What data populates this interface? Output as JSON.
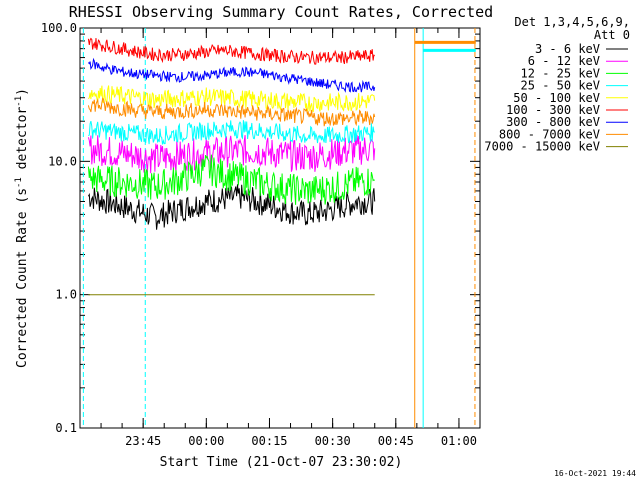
{
  "chart_data": {
    "type": "line",
    "title": "RHESSI Observing Summary Count Rates, Corrected",
    "xlabel": "Start Time (21-Oct-07 23:30:02)",
    "ylabel_main": "Corrected Count Rate (s",
    "ylabel_sup": "-1",
    "ylabel_tail": " detector",
    "ylabel_end": ")",
    "y_scale": "log",
    "ylim": [
      0.1,
      100
    ],
    "xlim_minutes": [
      0,
      95
    ],
    "x_ticks": [
      {
        "label": "23:45",
        "minutes": 15
      },
      {
        "label": "00:00",
        "minutes": 30
      },
      {
        "label": "00:15",
        "minutes": 45
      },
      {
        "label": "00:30",
        "minutes": 60
      },
      {
        "label": "00:45",
        "minutes": 75
      },
      {
        "label": "01:00",
        "minutes": 90
      }
    ],
    "y_ticks": [
      {
        "label": "100.0",
        "value": 100
      },
      {
        "label": "10.0",
        "value": 10
      },
      {
        "label": "1.0",
        "value": 1
      },
      {
        "label": "0.1",
        "value": 0.1
      }
    ],
    "legend_header": [
      "Det 1,3,4,5,6,9,",
      "Att 0"
    ],
    "legend_position": "right",
    "series": [
      {
        "name": "3 - 6 keV",
        "color": "#000000",
        "values": [
          5.5,
          5.0,
          4.6,
          4.2,
          3.8,
          4.2,
          4.6,
          5.0,
          5.2,
          5.4,
          5.0,
          4.6,
          4.2,
          4.0,
          4.2,
          4.6,
          5.0,
          5.0
        ]
      },
      {
        "name": "6 - 12 keV",
        "color": "#ff00ff",
        "values": [
          12.5,
          12.0,
          11.5,
          11.0,
          10.5,
          10.8,
          11.2,
          11.5,
          11.8,
          12.0,
          12.0,
          11.5,
          11.0,
          10.8,
          11.2,
          11.8,
          12.2,
          12.5
        ]
      },
      {
        "name": "12 - 25 keV",
        "color": "#00ff00",
        "values": [
          7.5,
          7.2,
          7.0,
          6.8,
          6.5,
          7.0,
          7.8,
          8.8,
          8.0,
          7.5,
          7.0,
          6.5,
          6.2,
          6.0,
          6.2,
          6.5,
          7.0,
          7.2
        ]
      },
      {
        "name": "25 - 50 keV",
        "color": "#00ffff",
        "values": [
          17.5,
          17.0,
          16.5,
          16.0,
          15.5,
          16.0,
          16.5,
          17.0,
          17.5,
          17.5,
          17.0,
          16.5,
          16.0,
          15.5,
          15.5,
          15.8,
          16.2,
          16.5
        ]
      },
      {
        "name": "50 - 100 keV",
        "color": "#ffff00",
        "values": [
          33,
          32,
          31,
          30,
          29,
          29.5,
          30,
          30.5,
          30,
          29.5,
          29,
          28.5,
          28,
          27.5,
          27.5,
          27.8,
          28,
          28.5
        ]
      },
      {
        "name": "100 - 300 keV",
        "color": "#ff0000",
        "values": [
          78,
          74,
          70,
          66,
          63,
          63,
          64,
          66,
          68,
          66,
          64,
          62,
          61,
          60,
          60,
          60,
          61,
          62
        ]
      },
      {
        "name": "300 - 800 keV",
        "color": "#0000ff",
        "values": [
          55,
          50,
          47,
          45,
          44,
          43,
          43,
          44,
          46,
          47,
          46,
          44,
          42,
          40,
          38,
          37,
          36,
          36
        ]
      },
      {
        "name": "800 - 7000 keV",
        "color": "#ff8c00",
        "values": [
          27,
          26,
          25,
          24,
          23.5,
          23.5,
          24,
          24.5,
          24,
          23.5,
          23,
          22.5,
          22,
          21.5,
          21,
          21,
          21,
          21.5
        ]
      },
      {
        "name": "7000 - 15000 keV",
        "color": "#808000",
        "values": [
          1,
          1,
          1,
          1,
          1,
          1,
          1,
          1,
          1,
          1,
          1,
          1,
          1,
          1,
          1,
          1,
          1,
          1
        ]
      }
    ],
    "series_x_minutes": [
      2,
      6,
      10,
      14,
      18,
      22,
      26,
      30,
      34,
      38,
      42,
      46,
      50,
      54,
      58,
      62,
      66,
      70
    ],
    "vertical_lines": [
      {
        "minutes": 0.8,
        "color": "#00ffff",
        "dashed": true
      },
      {
        "minutes": 15.5,
        "color": "#00ffff",
        "dashed": true
      },
      {
        "minutes": 79.5,
        "color": "#ff8c00",
        "dashed": false
      },
      {
        "minutes": 81.5,
        "color": "#00ffff",
        "dashed": false
      },
      {
        "minutes": 93.8,
        "color": "#ff8c00",
        "dashed": true
      }
    ],
    "after_gap_levels": [
      {
        "color": "#ff8c00",
        "value": 78,
        "from": 79.5,
        "to": 94
      },
      {
        "color": "#00ffff",
        "value": 68,
        "from": 81.5,
        "to": 94
      }
    ],
    "footer_timestamp": "16-Oct-2021 19:44"
  }
}
